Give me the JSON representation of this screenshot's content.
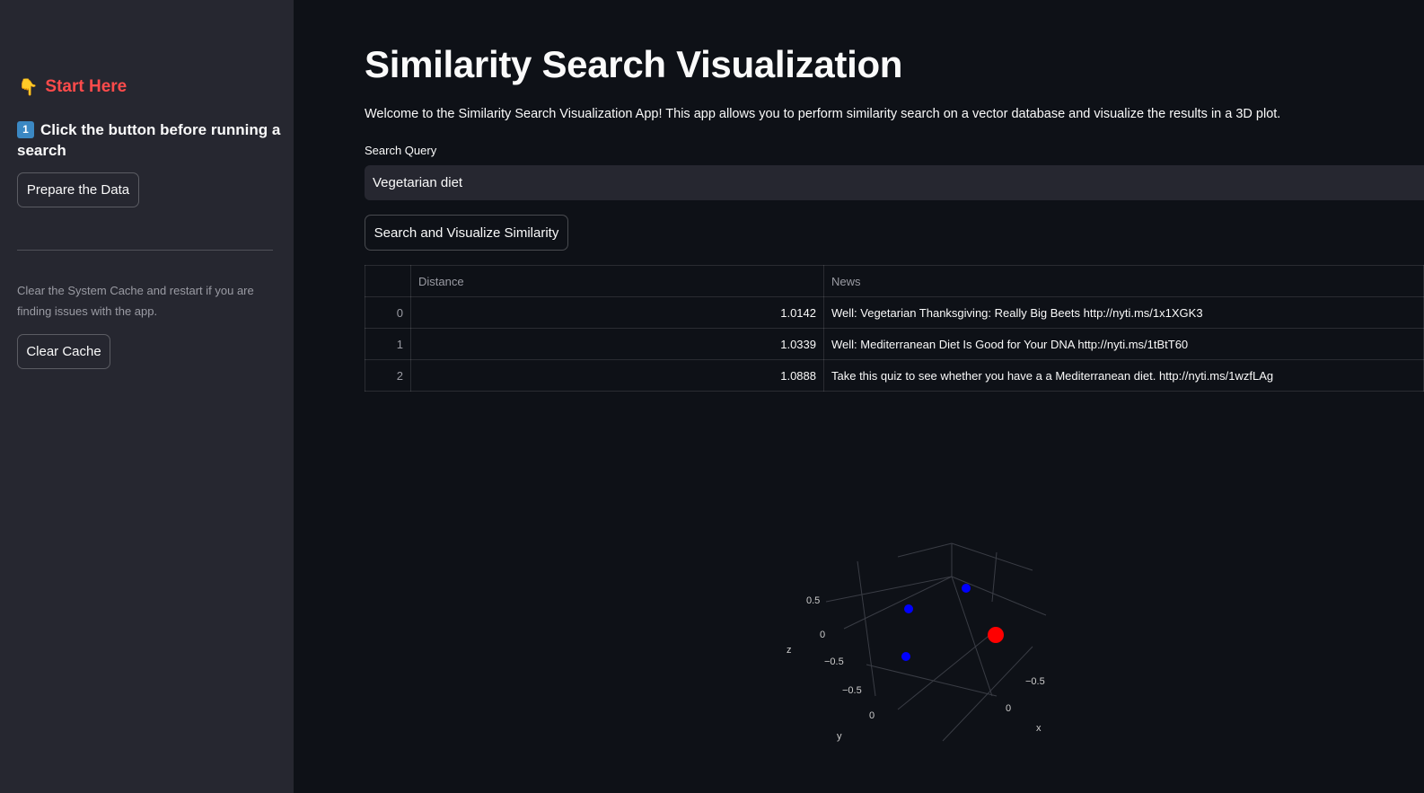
{
  "sidebar": {
    "start_here": "Start Here",
    "step_badge": "1",
    "step_text": "Click the button before running a search",
    "prepare_button": "Prepare the Data",
    "cache_note": "Clear the System Cache and restart if you are finding issues with the app.",
    "clear_cache_button": "Clear Cache"
  },
  "main": {
    "title": "Similarity Search Visualization",
    "welcome": "Welcome to the Similarity Search Visualization App! This app allows you to perform similarity search on a vector database and visualize the results in a 3D plot.",
    "search_label": "Search Query",
    "search_value": "Vegetarian diet",
    "search_button": "Search and Visualize Similarity"
  },
  "table": {
    "columns": [
      "",
      "Distance",
      "News"
    ],
    "rows": [
      {
        "index": "0",
        "distance": "1.0142",
        "news": "Well: Vegetarian Thanksgiving: Really Big Beets http://nyti.ms/1x1XGK3"
      },
      {
        "index": "1",
        "distance": "1.0339",
        "news": "Well: Mediterranean Diet Is Good for Your DNA http://nyti.ms/1tBtT60"
      },
      {
        "index": "2",
        "distance": "1.0888",
        "news": "Take this quiz to see whether you have a a Mediterranean diet.  http://nyti.ms/1wzfLAg"
      }
    ]
  },
  "chart_data": {
    "type": "scatter",
    "axis_labels": {
      "x": "x",
      "y": "y",
      "z": "z"
    },
    "z_ticks": [
      "0.5",
      "0",
      "−0.5"
    ],
    "y_ticks": [
      "−0.5",
      "0"
    ],
    "x_ticks": [
      "−0.5",
      "0"
    ],
    "series": [
      {
        "role": "results",
        "color": "#0000ff",
        "marker": "small"
      },
      {
        "role": "query",
        "color": "#ff0000",
        "marker": "large"
      }
    ]
  },
  "colors": {
    "accent": "#ff4b4b",
    "background": "#0e1117",
    "sidebar": "#262730"
  }
}
